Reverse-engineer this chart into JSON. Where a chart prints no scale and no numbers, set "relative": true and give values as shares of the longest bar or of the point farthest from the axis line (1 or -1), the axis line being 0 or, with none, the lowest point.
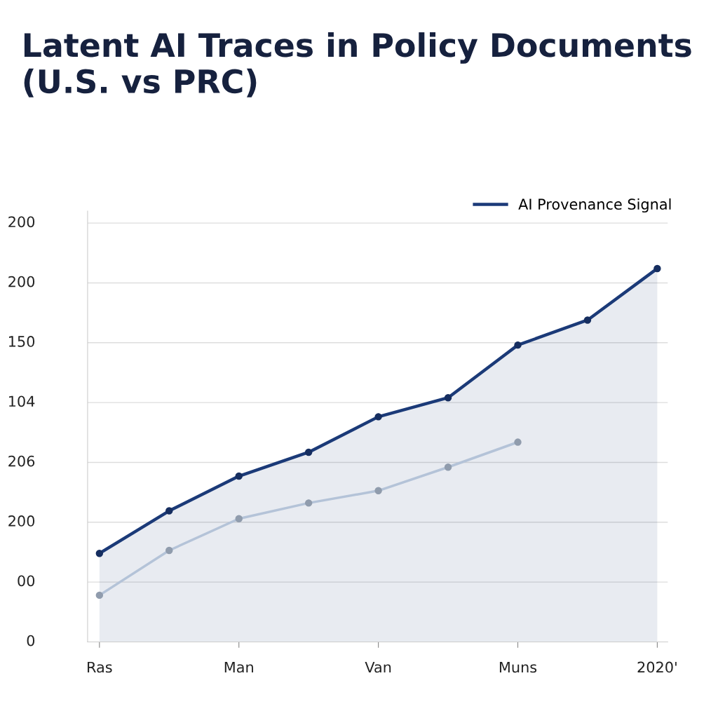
{
  "chart_data": {
    "type": "line",
    "title": "Latent AI Traces in Policy Documents (U.S. vs PRC)",
    "relative": true,
    "categories": [
      "Ras",
      null,
      "Man",
      null,
      "Van",
      null,
      "Muns",
      null,
      "2020'"
    ],
    "annotations": [
      "0",
      "00",
      "200",
      "206",
      "104",
      "150",
      "200",
      "200"
    ],
    "grid": "y",
    "legend": "top right",
    "marker": "circle",
    "line_style": "solid",
    "series": [
      {
        "name": "AI Provenance Signal",
        "type": "area",
        "color": "#1b3a78",
        "values": [
          0.237,
          0.351,
          0.444,
          0.508,
          0.603,
          0.654,
          0.795,
          0.862,
          1
        ]
      },
      {
        "color": "#b4c3d8",
        "values": [
          0.125,
          0.245,
          0.33,
          0.372,
          0.405,
          0.468,
          0.535,
          null,
          null
        ]
      }
    ]
  }
}
